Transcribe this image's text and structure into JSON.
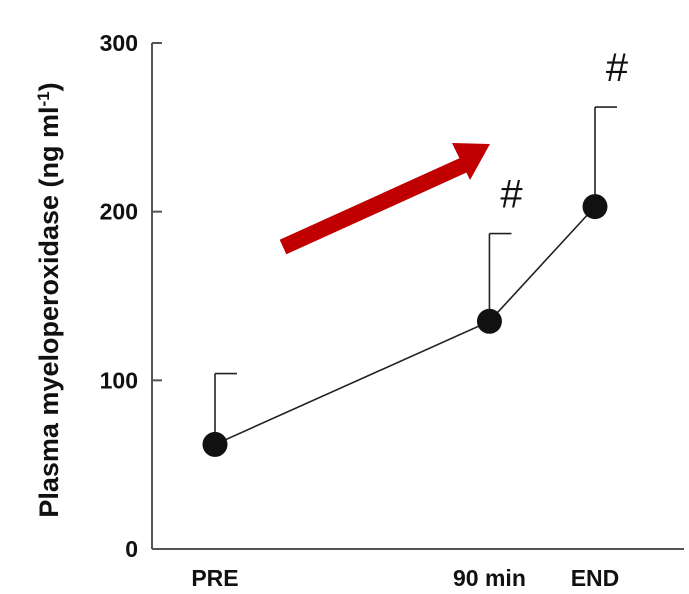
{
  "chart_data": {
    "type": "line",
    "categories": [
      "PRE",
      "90 min",
      "END"
    ],
    "x_positions": [
      0,
      2.6,
      3.6
    ],
    "series": [
      {
        "values": [
          62,
          135,
          203
        ],
        "error_upper": [
          104,
          187,
          262
        ]
      }
    ],
    "ylabel_main": "Plasma myeloperoxidase (ng ml",
    "ylabel_sup": "-1",
    "ylabel_end": ")",
    "ylim": [
      0,
      300
    ],
    "yticks": [
      "0",
      "100",
      "200",
      "300"
    ],
    "annotations": [
      {
        "text": "#",
        "category": "90 min"
      },
      {
        "text": "#",
        "category": "END"
      }
    ],
    "grid": false,
    "legend": "none",
    "colors": {
      "line": "#222222",
      "marker": "#111111",
      "arrow": "#c00000",
      "axis": "#555555"
    }
  }
}
